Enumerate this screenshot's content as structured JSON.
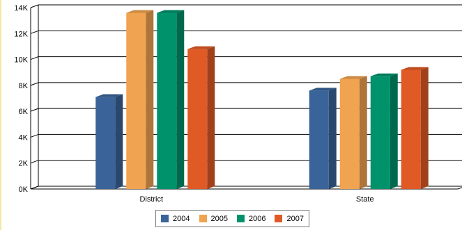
{
  "chart_data": {
    "type": "bar",
    "bar_style": "3d",
    "categories": [
      "District",
      "State"
    ],
    "series": [
      {
        "name": "2004",
        "color": "#3a6499",
        "values": [
          7100,
          7600
        ]
      },
      {
        "name": "2005",
        "color": "#f0a350",
        "values": [
          13600,
          8500
        ]
      },
      {
        "name": "2006",
        "color": "#00926b",
        "values": [
          13600,
          8700
        ]
      },
      {
        "name": "2007",
        "color": "#e05a25",
        "values": [
          10800,
          9200
        ]
      }
    ],
    "ylim": [
      0,
      14000
    ],
    "yticks": [
      0,
      2000,
      4000,
      6000,
      8000,
      10000,
      12000,
      14000
    ],
    "ytick_labels": [
      "0K",
      "2K",
      "4K",
      "6K",
      "8K",
      "10K",
      "12K",
      "14K"
    ],
    "grid": true,
    "legend_position": "bottom-center",
    "title": "",
    "xlabel": "",
    "ylabel": ""
  }
}
